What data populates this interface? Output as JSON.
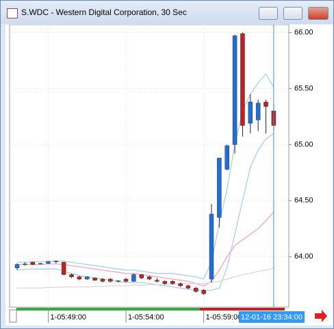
{
  "window": {
    "title": "S.WDC - Western Digital Corporation, 30 Sec"
  },
  "chart_data": {
    "type": "candlestick",
    "categories": [
      null,
      null,
      null,
      null,
      "1-05:49:00",
      null,
      null,
      null,
      null,
      null,
      null,
      null,
      null,
      null,
      "1-05:54:00",
      null,
      null,
      null,
      null,
      null,
      null,
      null,
      null,
      null,
      "1-05:59:00",
      null,
      null,
      null,
      null,
      null,
      null,
      null,
      null,
      null
    ],
    "open": [
      63.9,
      63.93,
      63.95,
      63.94,
      63.94,
      63.955,
      63.95,
      63.84,
      63.82,
      63.8,
      63.81,
      63.8,
      63.8,
      63.785,
      63.8,
      63.78,
      63.84,
      63.82,
      63.79,
      63.78,
      63.78,
      63.76,
      63.74,
      63.72,
      63.7,
      63.8,
      64.35,
      64.78,
      65.0,
      65.99,
      65.19,
      65.22,
      65.38,
      65.3
    ],
    "high": [
      63.94,
      63.95,
      63.955,
      63.945,
      63.96,
      63.965,
      63.955,
      63.85,
      63.83,
      63.825,
      63.815,
      63.81,
      63.81,
      63.79,
      63.81,
      63.85,
      63.845,
      63.83,
      63.81,
      63.79,
      63.79,
      63.77,
      63.75,
      63.73,
      63.71,
      64.47,
      64.88,
      65.0,
      65.98,
      66.0,
      65.45,
      65.4,
      65.4,
      65.36
    ],
    "low": [
      63.88,
      63.92,
      63.925,
      63.935,
      63.935,
      63.94,
      63.835,
      63.81,
      63.79,
      63.795,
      63.785,
      63.77,
      63.77,
      63.77,
      63.77,
      63.775,
      63.8,
      63.79,
      63.77,
      63.75,
      63.75,
      63.73,
      63.71,
      63.68,
      63.66,
      63.77,
      64.26,
      64.77,
      64.92,
      65.07,
      65.1,
      65.12,
      65.1,
      65.14
    ],
    "close": [
      63.93,
      63.935,
      63.93,
      63.94,
      63.955,
      63.96,
      63.84,
      63.82,
      63.8,
      63.82,
      63.79,
      63.78,
      63.78,
      63.785,
      63.78,
      63.84,
      63.81,
      63.8,
      63.78,
      63.76,
      63.76,
      63.74,
      63.72,
      63.69,
      63.67,
      64.38,
      64.88,
      64.99,
      65.97,
      65.17,
      65.38,
      65.37,
      65.34,
      65.17
    ],
    "up_color": "#1f6fd6",
    "down_color": "#c0221f",
    "overlays": [
      {
        "color": "#a9cdef",
        "values": [
          63.95,
          63.95,
          63.955,
          63.955,
          63.96,
          63.96,
          63.96,
          63.95,
          63.94,
          63.93,
          63.92,
          63.91,
          63.9,
          63.89,
          63.88,
          63.88,
          63.87,
          63.86,
          63.85,
          63.85,
          63.85,
          63.84,
          63.83,
          63.82,
          63.8,
          63.95,
          64.3,
          64.6,
          65.0,
          65.3,
          65.45,
          65.55,
          65.63,
          65.51
        ]
      },
      {
        "color": "#a9cdef",
        "values": [
          63.88,
          63.885,
          63.89,
          63.89,
          63.89,
          63.89,
          63.87,
          63.85,
          63.83,
          63.82,
          63.81,
          63.8,
          63.79,
          63.78,
          63.77,
          63.77,
          63.77,
          63.76,
          63.75,
          63.74,
          63.73,
          63.72,
          63.71,
          63.7,
          63.7,
          63.7,
          63.72,
          63.9,
          64.2,
          64.5,
          64.8,
          64.95,
          65.05,
          65.1
        ]
      },
      {
        "color": "#f2a6c0",
        "values": [
          63.93,
          63.93,
          63.93,
          63.93,
          63.935,
          63.935,
          63.93,
          63.92,
          63.91,
          63.9,
          63.89,
          63.88,
          63.87,
          63.86,
          63.85,
          63.85,
          63.84,
          63.83,
          63.82,
          63.81,
          63.8,
          63.79,
          63.78,
          63.76,
          63.74,
          63.78,
          63.88,
          64.0,
          64.1,
          64.15,
          64.2,
          64.25,
          64.32,
          64.4
        ]
      },
      {
        "color": "#d8d8d8",
        "values": [
          63.72,
          63.72,
          63.72,
          63.72,
          63.725,
          63.725,
          63.73,
          63.73,
          63.73,
          63.73,
          63.735,
          63.735,
          63.74,
          63.74,
          63.74,
          63.745,
          63.745,
          63.75,
          63.75,
          63.75,
          63.755,
          63.755,
          63.76,
          63.76,
          63.76,
          63.77,
          63.78,
          63.8,
          63.82,
          63.84,
          63.85,
          63.87,
          63.88,
          63.9
        ]
      }
    ],
    "ylim": [
      63.55,
      66.07
    ],
    "yticks": [
      {
        "value": 64,
        "label": "64.00"
      },
      {
        "value": 64.5,
        "label": "64.50"
      },
      {
        "value": 65,
        "label": "65.00"
      },
      {
        "value": 65.5,
        "label": "65.50"
      },
      {
        "value": 66,
        "label": "66.00"
      }
    ],
    "grid": true,
    "cursor_label": "12-01-16 23:34:00"
  }
}
